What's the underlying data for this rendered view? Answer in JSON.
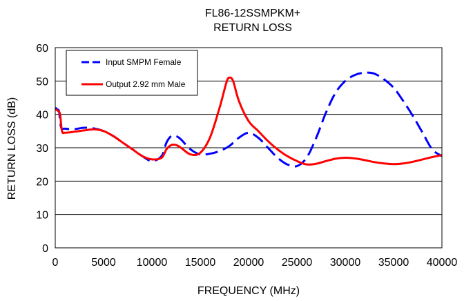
{
  "chart_data": {
    "type": "line",
    "title_lines": [
      "FL86-12SSMPKM+",
      "RETURN LOSS"
    ],
    "xlabel": "FREQUENCY (MHz)",
    "ylabel": "RETURN LOSS (dB)",
    "xlim": [
      0,
      40000
    ],
    "ylim": [
      0,
      60
    ],
    "xticks": [
      0,
      5000,
      10000,
      15000,
      20000,
      25000,
      30000,
      35000,
      40000
    ],
    "yticks": [
      0,
      10,
      20,
      30,
      40,
      50,
      60
    ],
    "grid": "horizontal",
    "legend_position": "top-left",
    "series": [
      {
        "name": "Input SMPM Female",
        "color": "#0000ff",
        "style": "dashed",
        "points": [
          [
            10,
            42
          ],
          [
            200,
            41.5
          ],
          [
            400,
            40.8
          ],
          [
            600,
            36.2
          ],
          [
            1000,
            35.7
          ],
          [
            2000,
            35.6
          ],
          [
            3000,
            36
          ],
          [
            4000,
            35.8
          ],
          [
            5000,
            35
          ],
          [
            6000,
            33.5
          ],
          [
            7000,
            31.5
          ],
          [
            8000,
            29.5
          ],
          [
            9000,
            27.5
          ],
          [
            10000,
            26
          ],
          [
            11000,
            27.5
          ],
          [
            11500,
            31.5
          ],
          [
            12000,
            33.5
          ],
          [
            12500,
            33.5
          ],
          [
            13000,
            32.5
          ],
          [
            14000,
            29.5
          ],
          [
            15000,
            28
          ],
          [
            16000,
            28.2
          ],
          [
            17000,
            29
          ],
          [
            18000,
            30.5
          ],
          [
            19000,
            33
          ],
          [
            20000,
            34.5
          ],
          [
            21000,
            33
          ],
          [
            22000,
            30
          ],
          [
            23000,
            27
          ],
          [
            24000,
            25
          ],
          [
            25000,
            24.5
          ],
          [
            26000,
            27
          ],
          [
            27000,
            33
          ],
          [
            28000,
            40.5
          ],
          [
            29000,
            46.5
          ],
          [
            30000,
            50
          ],
          [
            31000,
            51.8
          ],
          [
            32000,
            52.5
          ],
          [
            33000,
            52.2
          ],
          [
            34000,
            50.5
          ],
          [
            35000,
            48
          ],
          [
            36000,
            44
          ],
          [
            37000,
            39.5
          ],
          [
            38000,
            34.5
          ],
          [
            39000,
            29.5
          ],
          [
            40000,
            27.5
          ]
        ]
      },
      {
        "name": "Output 2.92 mm Male",
        "color": "#ff0000",
        "style": "solid",
        "points": [
          [
            10,
            41.5
          ],
          [
            300,
            41
          ],
          [
            500,
            40
          ],
          [
            700,
            35
          ],
          [
            1000,
            34.5
          ],
          [
            2000,
            34.8
          ],
          [
            3000,
            35.2
          ],
          [
            4000,
            35.5
          ],
          [
            5000,
            35
          ],
          [
            6000,
            33.5
          ],
          [
            7000,
            31.5
          ],
          [
            8000,
            29.5
          ],
          [
            9000,
            27.5
          ],
          [
            10000,
            26.5
          ],
          [
            11000,
            27
          ],
          [
            11500,
            29.5
          ],
          [
            12000,
            30.8
          ],
          [
            12500,
            30.8
          ],
          [
            13000,
            30
          ],
          [
            14000,
            28
          ],
          [
            15000,
            28.5
          ],
          [
            16000,
            33
          ],
          [
            17000,
            42
          ],
          [
            17700,
            49.5
          ],
          [
            18000,
            51
          ],
          [
            18400,
            50
          ],
          [
            19000,
            44
          ],
          [
            20000,
            38
          ],
          [
            21000,
            35
          ],
          [
            22000,
            32
          ],
          [
            23000,
            29.5
          ],
          [
            24000,
            27.5
          ],
          [
            25000,
            26
          ],
          [
            26000,
            25
          ],
          [
            27000,
            25.2
          ],
          [
            28000,
            26
          ],
          [
            29000,
            26.7
          ],
          [
            30000,
            27
          ],
          [
            31000,
            26.8
          ],
          [
            32000,
            26.3
          ],
          [
            33000,
            25.7
          ],
          [
            34000,
            25.3
          ],
          [
            35000,
            25.1
          ],
          [
            36000,
            25.3
          ],
          [
            37000,
            25.8
          ],
          [
            38000,
            26.5
          ],
          [
            39000,
            27.2
          ],
          [
            40000,
            27.8
          ]
        ]
      }
    ]
  }
}
